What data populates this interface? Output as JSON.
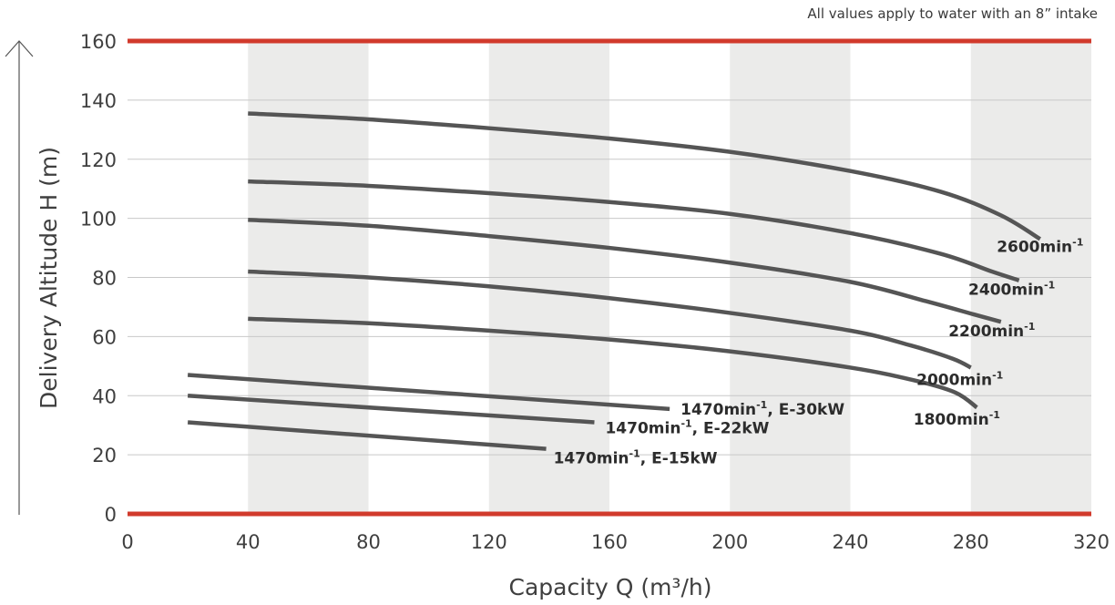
{
  "chart_data": {
    "type": "line",
    "note": "All values apply to water with an 8” intake",
    "xlabel": "Capacity Q (m³/h)",
    "ylabel": "Delivery Altitude H (m)",
    "xlim": [
      0,
      320
    ],
    "ylim": [
      0,
      160
    ],
    "x_ticks": [
      0,
      40,
      80,
      120,
      160,
      200,
      240,
      280,
      320
    ],
    "y_ticks": [
      0,
      20,
      40,
      60,
      80,
      100,
      120,
      140,
      160
    ],
    "shaded_bands": [
      [
        40,
        80
      ],
      [
        120,
        160
      ],
      [
        200,
        240
      ],
      [
        280,
        320
      ]
    ],
    "grid": true,
    "colors": {
      "curve": "#555555",
      "limit_line": "#d13a2c",
      "band": "#ebebea",
      "grid": "#c8c8c8"
    },
    "series": [
      {
        "name": "2600min",
        "label": {
          "text": "2600min",
          "sup": "-1"
        },
        "x": [
          40,
          80,
          120,
          160,
          200,
          240,
          270,
          290,
          303
        ],
        "y": [
          135.5,
          133.5,
          130.5,
          127,
          122.5,
          116,
          109,
          101,
          93
        ]
      },
      {
        "name": "2400min",
        "label": {
          "text": "2400min",
          "sup": "-1"
        },
        "x": [
          40,
          80,
          120,
          160,
          200,
          240,
          270,
          287,
          296
        ],
        "y": [
          112.5,
          111,
          108.5,
          105.5,
          101.5,
          95,
          88,
          82,
          79
        ]
      },
      {
        "name": "2200min",
        "label": {
          "text": "2200min",
          "sup": "-1"
        },
        "x": [
          40,
          80,
          120,
          160,
          200,
          240,
          265,
          281,
          290
        ],
        "y": [
          99.5,
          97.5,
          94,
          90,
          85,
          78.5,
          72,
          67.5,
          65
        ]
      },
      {
        "name": "2000min",
        "label": {
          "text": "2000min",
          "sup": "-1"
        },
        "x": [
          40,
          80,
          120,
          160,
          200,
          240,
          260,
          274,
          280
        ],
        "y": [
          82,
          80,
          77,
          73,
          68,
          62,
          57,
          52.5,
          49.5
        ]
      },
      {
        "name": "1800min",
        "label": {
          "text": "1800min",
          "sup": "-1"
        },
        "x": [
          40,
          80,
          120,
          160,
          200,
          240,
          262,
          275,
          282
        ],
        "y": [
          66,
          64.5,
          62,
          59,
          55,
          49.5,
          45,
          41,
          36
        ]
      },
      {
        "name": "1470min, E-30kW",
        "label": {
          "text": "1470min",
          "sup": "-1",
          "suffix": ", E-30kW"
        },
        "x": [
          20,
          180
        ],
        "y": [
          47,
          35.5
        ]
      },
      {
        "name": "1470min, E-22kW",
        "label": {
          "text": "1470min",
          "sup": "-1",
          "suffix": ", E-22kW"
        },
        "x": [
          20,
          155
        ],
        "y": [
          40,
          31
        ]
      },
      {
        "name": "1470min, E-15kW",
        "label": {
          "text": "1470min",
          "sup": "-1",
          "suffix": ", E-15kW"
        },
        "x": [
          20,
          139
        ],
        "y": [
          31,
          22
        ]
      }
    ]
  }
}
